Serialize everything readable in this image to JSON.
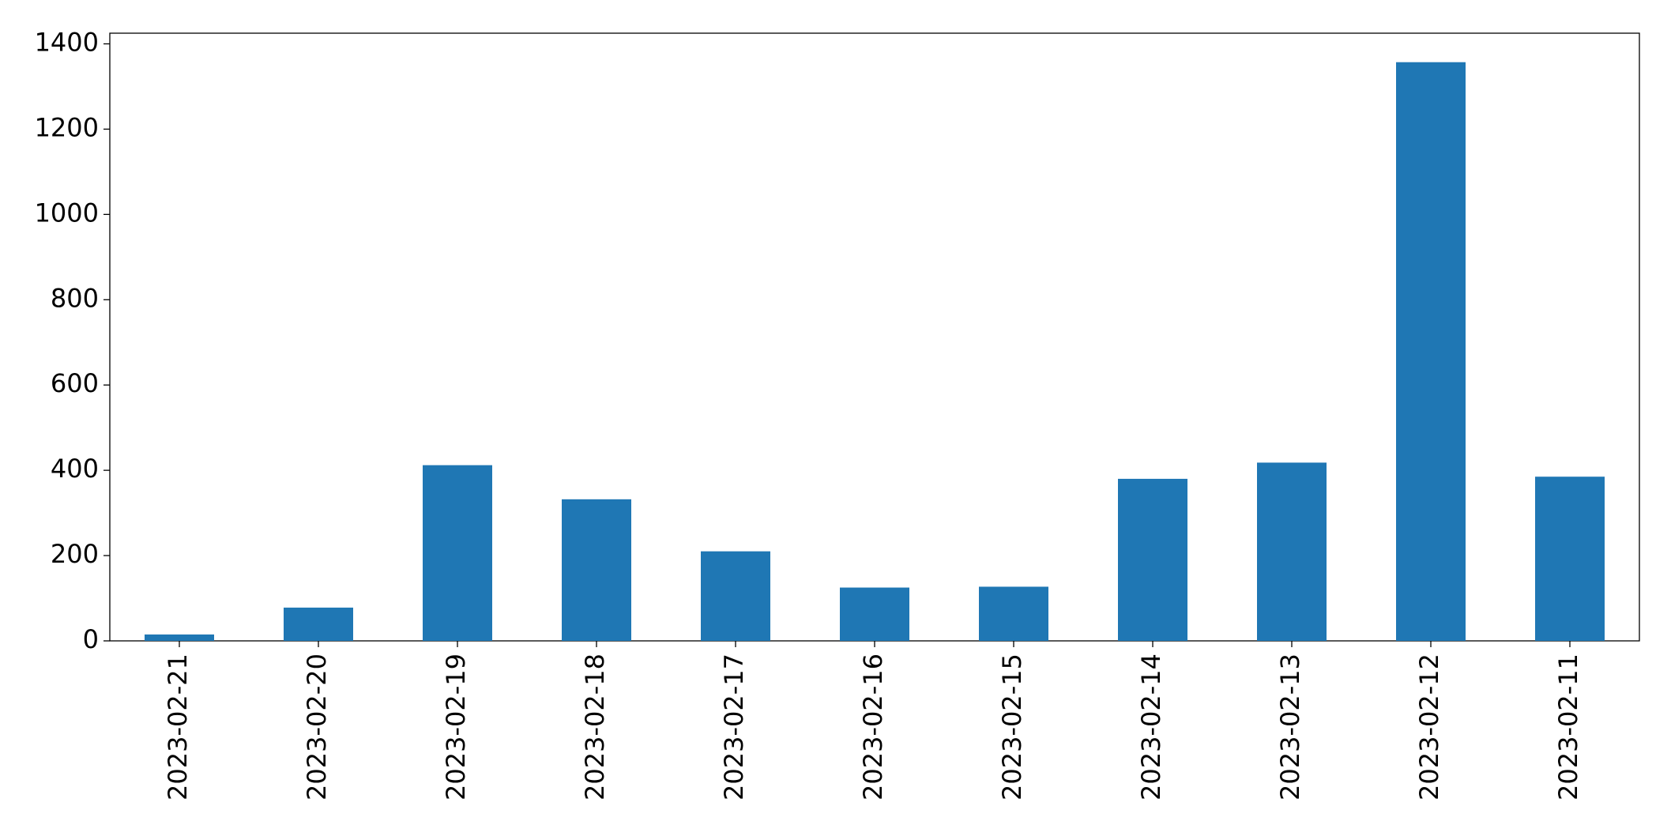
{
  "chart_data": {
    "type": "bar",
    "categories": [
      "2023-02-21",
      "2023-02-20",
      "2023-02-19",
      "2023-02-18",
      "2023-02-17",
      "2023-02-16",
      "2023-02-15",
      "2023-02-14",
      "2023-02-13",
      "2023-02-12",
      "2023-02-11"
    ],
    "values": [
      15,
      78,
      412,
      332,
      210,
      125,
      127,
      380,
      418,
      1357,
      385
    ],
    "color": "#1f77b4",
    "ylim": [
      0,
      1425
    ],
    "yticks": [
      0,
      200,
      400,
      600,
      800,
      1000,
      1200,
      1400
    ],
    "grid": false
  }
}
